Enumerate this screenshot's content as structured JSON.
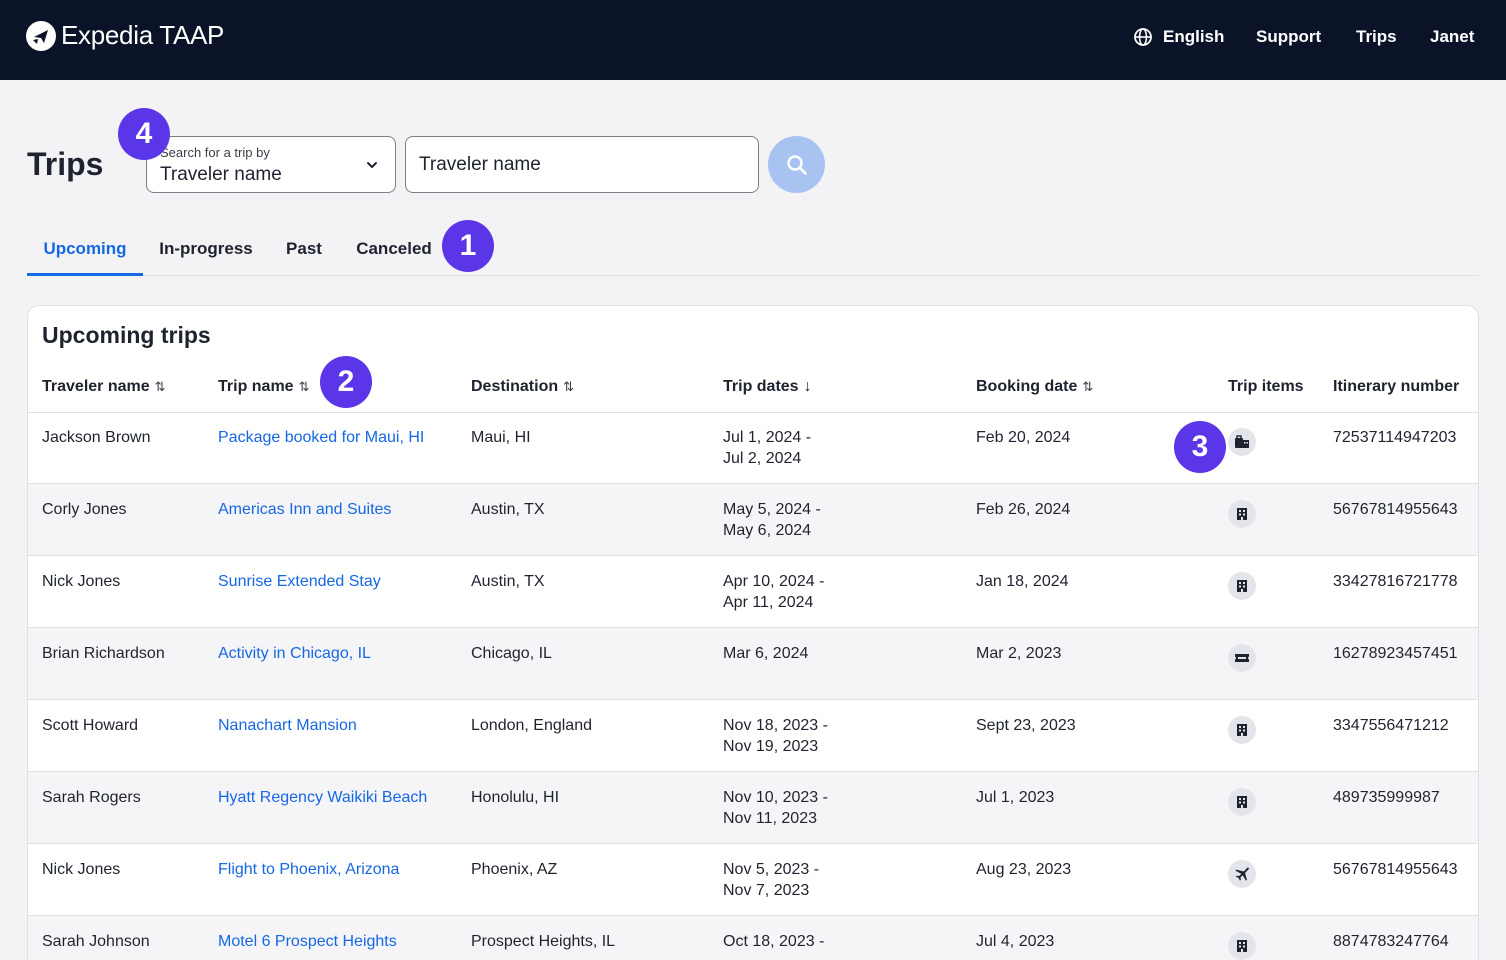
{
  "header": {
    "logo_text": "Expedia TAAP",
    "nav": {
      "language": "English",
      "support": "Support",
      "trips": "Trips",
      "user": "Janet"
    }
  },
  "page": {
    "title": "Trips"
  },
  "search": {
    "select_label": "Search for a trip by",
    "select_value": "Traveler name",
    "input_value": "Traveler name",
    "button_icon": "search-icon"
  },
  "tabs": [
    {
      "label": "Upcoming",
      "active": true
    },
    {
      "label": "In-progress",
      "active": false
    },
    {
      "label": "Past",
      "active": false
    },
    {
      "label": "Canceled",
      "active": false
    }
  ],
  "table": {
    "title": "Upcoming trips",
    "columns": [
      "Traveler name",
      "Trip name",
      "Destination",
      "Trip dates",
      "Booking date",
      "Trip items",
      "Itinerary number"
    ],
    "rows": [
      {
        "traveler": "Jackson Brown",
        "trip": "Package booked for Maui, HI",
        "destination": "Maui, HI",
        "dates_start": "Jul 1, 2024 -",
        "dates_end": "Jul 2, 2024",
        "booking": "Feb 20, 2024",
        "item_icon": "package-icon",
        "itinerary": "72537114947203"
      },
      {
        "traveler": "Corly Jones",
        "trip": "Americas Inn and Suites",
        "destination": "Austin, TX",
        "dates_start": "May 5, 2024 -",
        "dates_end": "May 6, 2024",
        "booking": "Feb 26, 2024",
        "item_icon": "hotel-icon",
        "itinerary": "56767814955643"
      },
      {
        "traveler": "Nick Jones",
        "trip": "Sunrise Extended Stay",
        "destination": "Austin, TX",
        "dates_start": "Apr 10, 2024 -",
        "dates_end": "Apr 11, 2024",
        "booking": "Jan 18, 2024",
        "item_icon": "hotel-icon",
        "itinerary": "33427816721778"
      },
      {
        "traveler": "Brian Richardson",
        "trip": "Activity in Chicago, IL",
        "destination": "Chicago, IL",
        "dates_start": "Mar 6, 2024",
        "dates_end": "",
        "booking": "Mar 2, 2023",
        "item_icon": "ticket-icon",
        "itinerary": "16278923457451"
      },
      {
        "traveler": "Scott Howard",
        "trip": "Nanachart Mansion",
        "destination": "London, England",
        "dates_start": "Nov 18, 2023 -",
        "dates_end": "Nov 19, 2023",
        "booking": "Sept 23, 2023",
        "item_icon": "hotel-icon",
        "itinerary": "3347556471212"
      },
      {
        "traveler": "Sarah Rogers",
        "trip": "Hyatt Regency Waikiki Beach",
        "destination": "Honolulu, HI",
        "dates_start": "Nov 10, 2023 -",
        "dates_end": "Nov 11, 2023",
        "booking": "Jul 1, 2023",
        "item_icon": "hotel-icon",
        "itinerary": "489735999987"
      },
      {
        "traveler": "Nick Jones",
        "trip": "Flight to Phoenix, Arizona",
        "destination": "Phoenix, AZ",
        "dates_start": "Nov 5, 2023 -",
        "dates_end": "Nov 7, 2023",
        "booking": "Aug 23, 2023",
        "item_icon": "plane-icon",
        "itinerary": "56767814955643"
      },
      {
        "traveler": "Sarah Johnson",
        "trip": "Motel 6 Prospect Heights",
        "destination": "Prospect Heights, IL",
        "dates_start": "Oct 18, 2023 -",
        "dates_end": "",
        "booking": "Jul 4, 2023",
        "item_icon": "hotel-icon",
        "itinerary": "8874783247764"
      }
    ]
  },
  "annotations": [
    "1",
    "2",
    "3",
    "4"
  ],
  "colors": {
    "header_bg": "#0a1327",
    "accent": "#1668e3",
    "badge": "#5b35e8",
    "search_button": "#a8c3f1"
  }
}
